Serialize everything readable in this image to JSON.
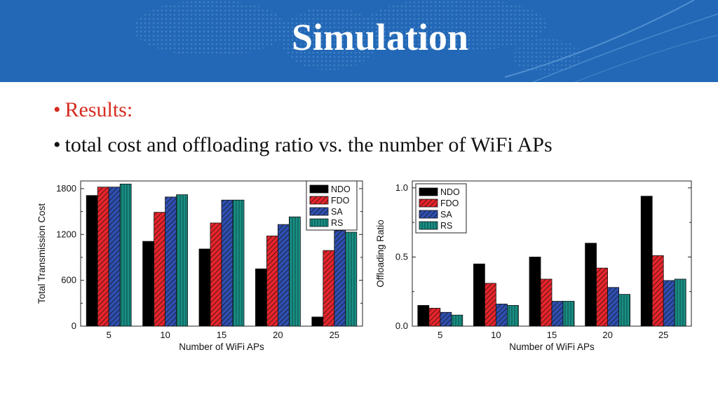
{
  "slide": {
    "title": "Simulation",
    "bullets": [
      "Results:",
      "total cost and offloading ratio vs. the number of WiFi APs"
    ]
  },
  "colors": {
    "header": "#2268b6",
    "bullet_accent": "#d62b1f",
    "NDO": "#000000",
    "FDO": "#e8242b",
    "SA": "#2f4fb0",
    "RS": "#1a8f84"
  },
  "chart_data": [
    {
      "type": "bar",
      "title": "",
      "xlabel": "Number of WiFi APs",
      "ylabel": "Total Transmission Cost",
      "categories": [
        "5",
        "10",
        "15",
        "20",
        "25"
      ],
      "ylim": [
        0,
        1900
      ],
      "yticks": [
        0,
        600,
        1200,
        1800
      ],
      "ytick_labels": [
        "0",
        "600",
        "1200",
        "1800"
      ],
      "legend_position": "top-right",
      "series": [
        {
          "name": "NDO",
          "values": [
            1710,
            1110,
            1010,
            750,
            120
          ]
        },
        {
          "name": "FDO",
          "values": [
            1820,
            1490,
            1350,
            1180,
            990
          ]
        },
        {
          "name": "SA",
          "values": [
            1820,
            1690,
            1650,
            1330,
            1250
          ]
        },
        {
          "name": "RS",
          "values": [
            1860,
            1720,
            1650,
            1430,
            1230
          ]
        }
      ]
    },
    {
      "type": "bar",
      "title": "",
      "xlabel": "Number of WiFi APs",
      "ylabel": "Offloading Ratio",
      "categories": [
        "5",
        "10",
        "15",
        "20",
        "25"
      ],
      "ylim": [
        0,
        1.05
      ],
      "yticks": [
        0,
        0.5,
        1.0
      ],
      "ytick_labels": [
        "0.0",
        "0.5",
        "1.0"
      ],
      "legend_position": "top-left",
      "series": [
        {
          "name": "NDO",
          "values": [
            0.15,
            0.45,
            0.5,
            0.6,
            0.94
          ]
        },
        {
          "name": "FDO",
          "values": [
            0.13,
            0.31,
            0.34,
            0.42,
            0.51
          ]
        },
        {
          "name": "SA",
          "values": [
            0.1,
            0.16,
            0.18,
            0.28,
            0.33
          ]
        },
        {
          "name": "RS",
          "values": [
            0.08,
            0.15,
            0.18,
            0.23,
            0.34
          ]
        }
      ]
    }
  ]
}
